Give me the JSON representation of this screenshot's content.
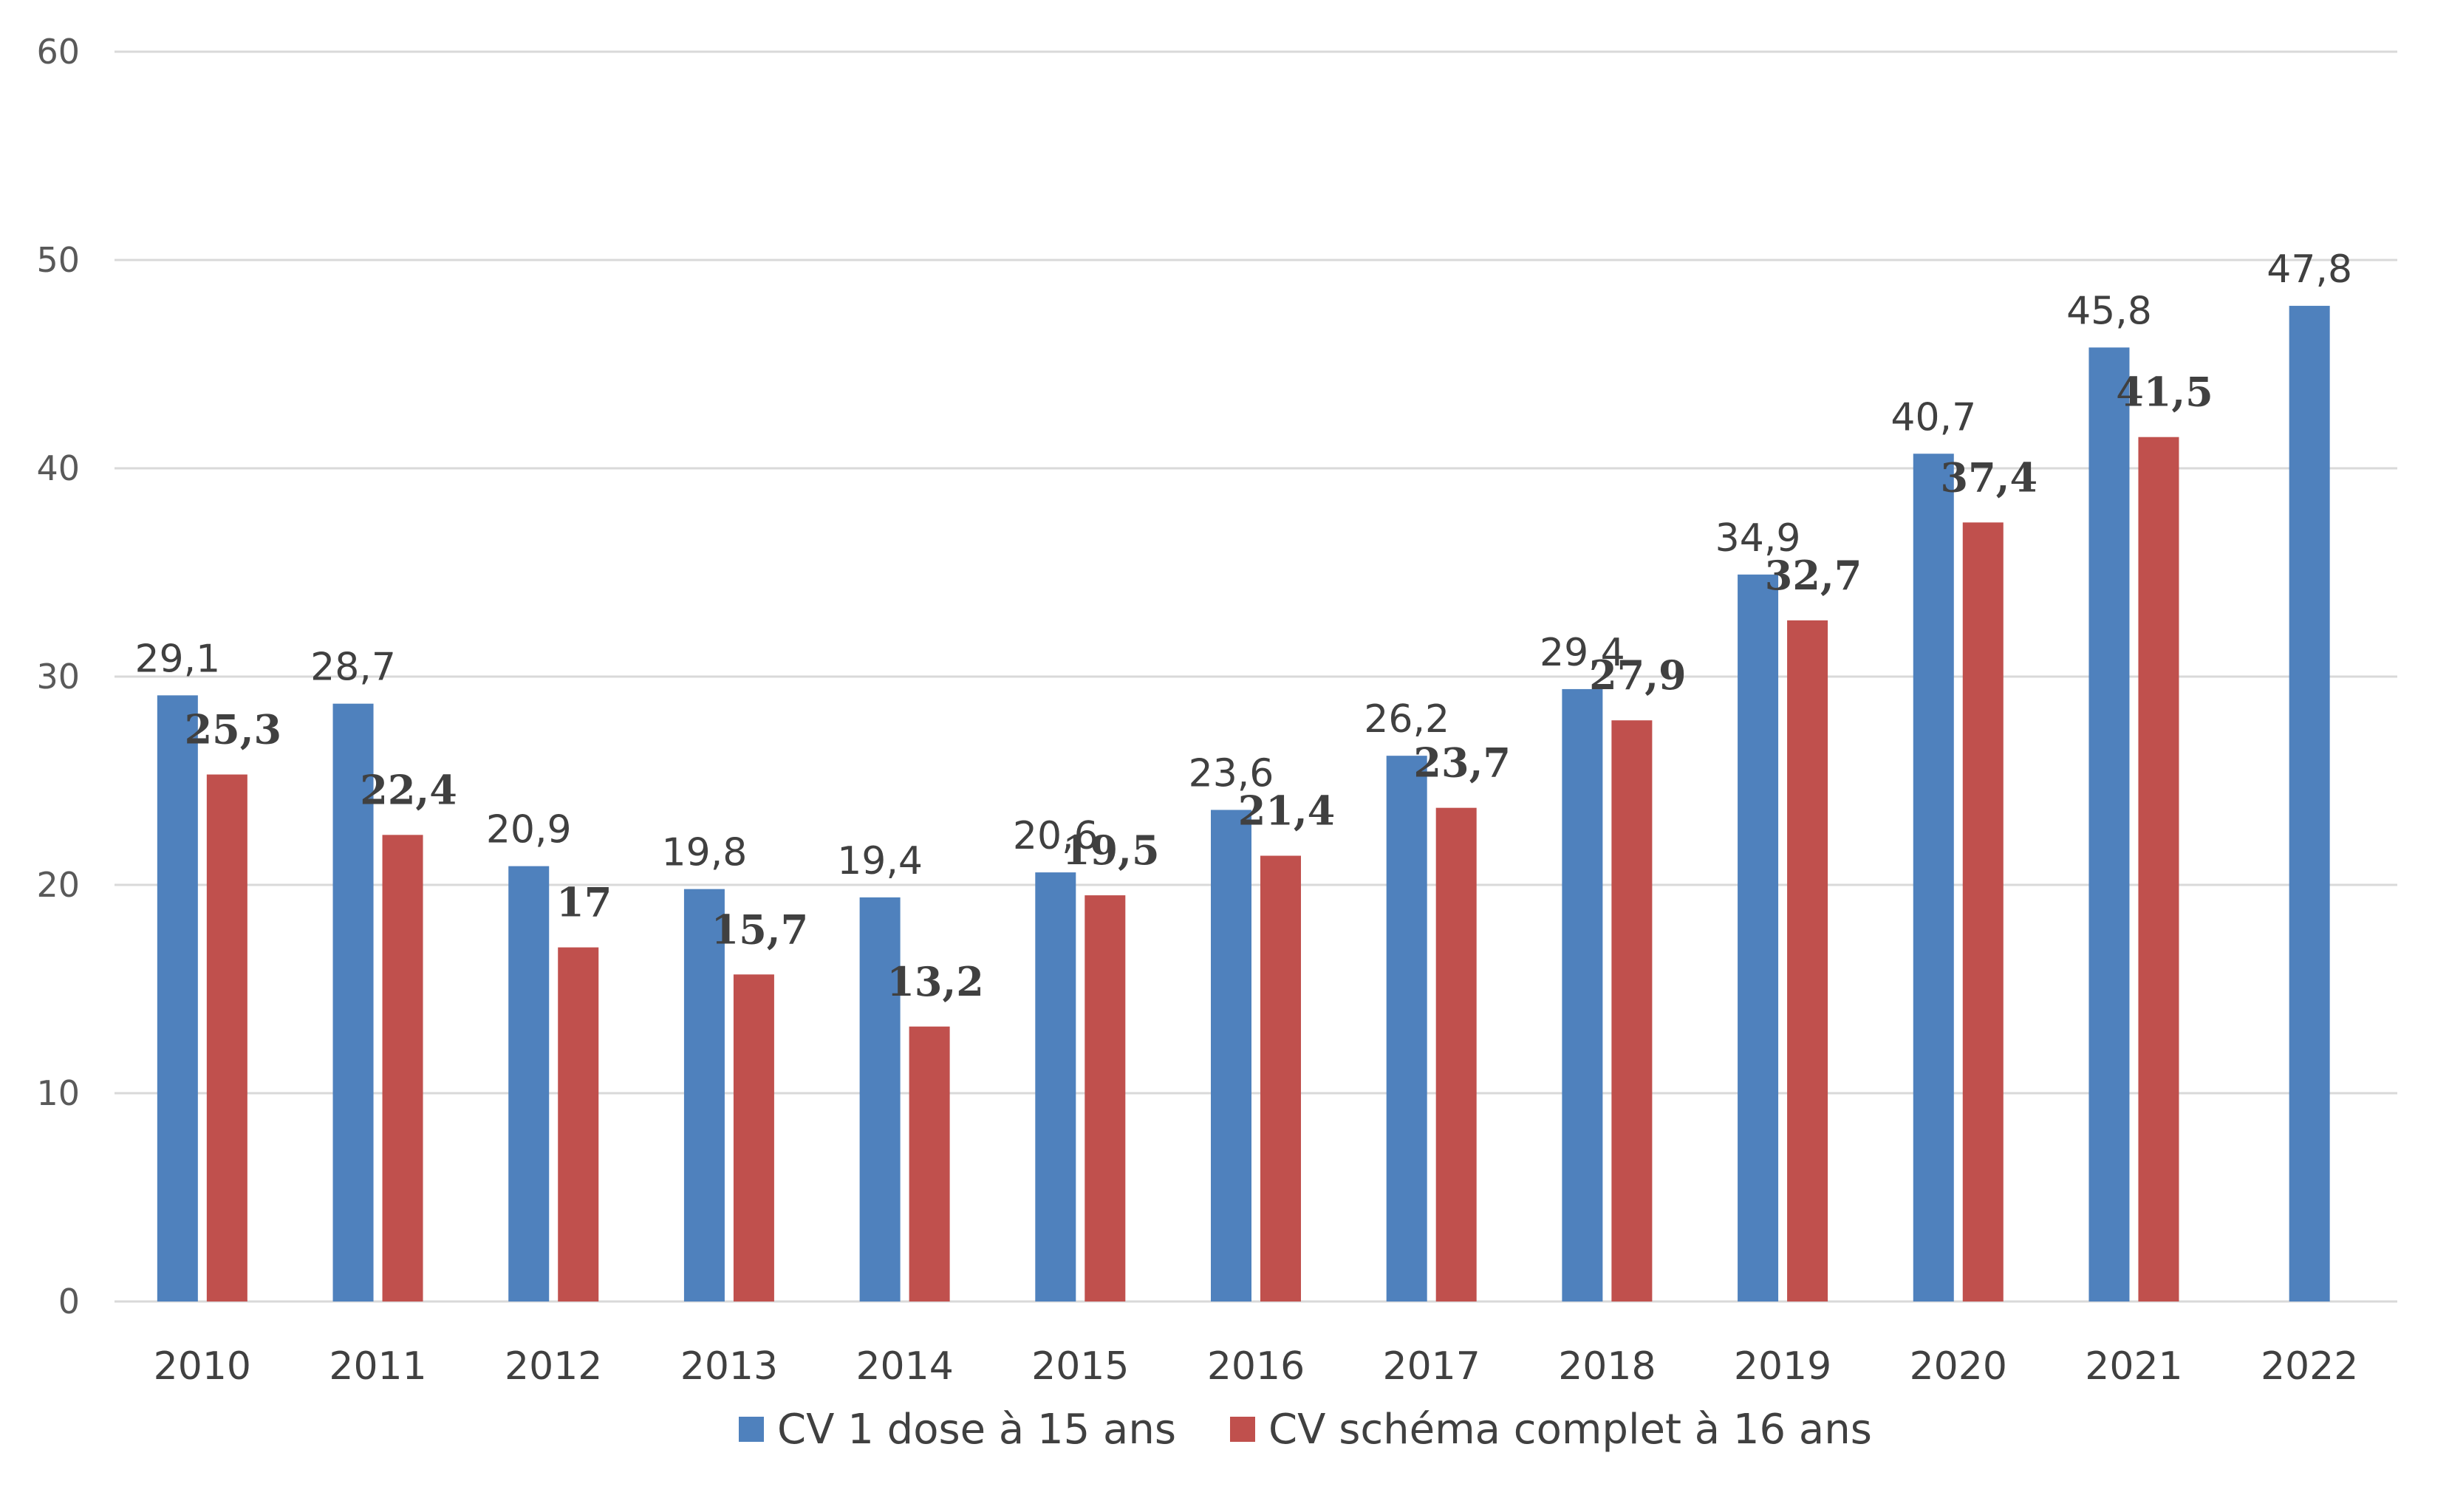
{
  "chart_data": {
    "type": "bar",
    "title": "",
    "xlabel": "",
    "ylabel": "",
    "ylim": [
      0,
      60
    ],
    "yticks": [
      0,
      10,
      20,
      30,
      40,
      50,
      60
    ],
    "categories": [
      "2010",
      "2011",
      "2012",
      "2013",
      "2014",
      "2015",
      "2016",
      "2017",
      "2018",
      "2019",
      "2020",
      "2021",
      "2022"
    ],
    "series": [
      {
        "name": "CV 1 dose à 15 ans",
        "color": "#4F81BD",
        "values": [
          29.1,
          28.7,
          20.9,
          19.8,
          19.4,
          20.6,
          23.6,
          26.2,
          29.4,
          34.9,
          40.7,
          45.8,
          47.8
        ],
        "labels": [
          "29,1",
          "28,7",
          "20,9",
          "19,8",
          "19,4",
          "20,6",
          "23,6",
          "26,2",
          "29,4",
          "34,9",
          "40,7",
          "45,8",
          "47,8"
        ]
      },
      {
        "name": "CV schéma complet à 16 ans",
        "color": "#C0504D",
        "values": [
          25.3,
          22.4,
          17,
          15.7,
          13.2,
          19.5,
          21.4,
          23.7,
          27.9,
          32.7,
          37.4,
          41.5,
          null
        ],
        "labels": [
          "25,3",
          "22,4",
          "17",
          "15,7",
          "13,2",
          "19,5",
          "21,4",
          "23,7",
          "27,9",
          "32,7",
          "37,4",
          "41,5",
          ""
        ]
      }
    ],
    "grid": true,
    "legend_position": "bottom"
  }
}
